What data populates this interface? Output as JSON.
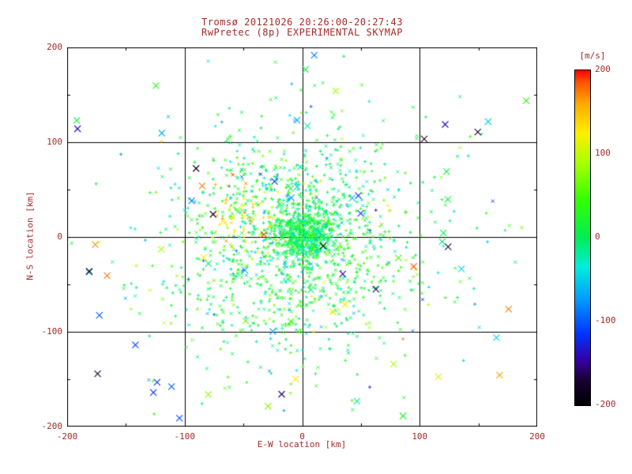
{
  "colors": {
    "text": "#a52a2a",
    "axis": "#000000",
    "background": "#ffffff"
  },
  "chart_data": {
    "type": "scatter",
    "title": "Tromsø 20121026 20:26:00-20:27:43",
    "subtitle": "RwPretec (8p) EXPERIMENTAL SKYMAP",
    "xlabel": "E-W location [km]",
    "ylabel": "N-S location [km]",
    "xlim": [
      -200,
      200
    ],
    "ylim": [
      -200,
      200
    ],
    "xticks": [
      -200,
      -100,
      0,
      100,
      200
    ],
    "yticks": [
      -200,
      -100,
      0,
      100,
      200
    ],
    "gridlines": [
      -100,
      0,
      100
    ],
    "grid": true,
    "legend_position": "none",
    "colorbar": {
      "label": "[m/s]",
      "range": [
        -200,
        200
      ],
      "ticks": [
        200,
        100,
        0,
        -100,
        -200
      ],
      "stops": [
        {
          "v": -200,
          "c": "#000000"
        },
        {
          "v": -170,
          "c": "#1a0033"
        },
        {
          "v": -145,
          "c": "#3300aa"
        },
        {
          "v": -115,
          "c": "#0033ff"
        },
        {
          "v": -75,
          "c": "#0099ff"
        },
        {
          "v": -35,
          "c": "#00eedd"
        },
        {
          "v": 0,
          "c": "#00ee55"
        },
        {
          "v": 45,
          "c": "#33ff00"
        },
        {
          "v": 90,
          "c": "#aaff00"
        },
        {
          "v": 125,
          "c": "#ffee00"
        },
        {
          "v": 160,
          "c": "#ffaa00"
        },
        {
          "v": 185,
          "c": "#ff5500"
        },
        {
          "v": 200,
          "c": "#ff0000"
        }
      ]
    },
    "point_clusters": [
      {
        "name": "dense-core",
        "cx": 2,
        "cy": 3,
        "sx": 14,
        "sy": 14,
        "count": 550,
        "vmean": 5,
        "vsig": 25,
        "seed": 11,
        "size": 2
      },
      {
        "name": "main-cloud",
        "cx": -8,
        "cy": 8,
        "sx": 48,
        "sy": 55,
        "count": 850,
        "vmean": 10,
        "vsig": 35,
        "seed": 22,
        "size": 2
      },
      {
        "name": "wide-halo",
        "cx": 0,
        "cy": -10,
        "sx": 95,
        "sy": 85,
        "count": 260,
        "vmean": 0,
        "vsig": 55,
        "seed": 33,
        "size": 2
      },
      {
        "name": "yellow-patch",
        "cx": -55,
        "cy": 18,
        "sx": 16,
        "sy": 22,
        "count": 70,
        "vmean": 120,
        "vsig": 30,
        "seed": 44,
        "size": 2
      },
      {
        "name": "south-green",
        "cx": -20,
        "cy": -60,
        "sx": 55,
        "sy": 35,
        "count": 180,
        "vmean": 25,
        "vsig": 30,
        "seed": 55,
        "size": 2
      }
    ],
    "outlier_points": {
      "count": 70,
      "xmin": -195,
      "xmax": 195,
      "ymin": -195,
      "ymax": 195,
      "vmin": -200,
      "vmax": 200,
      "seed": 77,
      "size": 4
    }
  }
}
